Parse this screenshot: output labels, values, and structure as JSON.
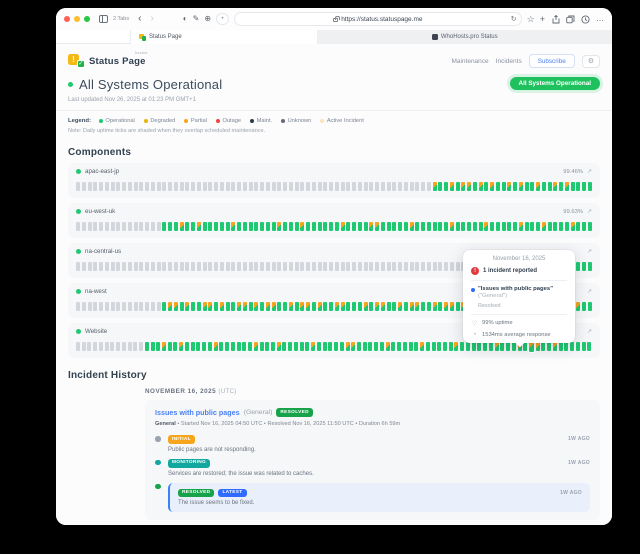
{
  "browser": {
    "tab_count_label": "2 Tabs",
    "url": "https://status.statuspage.me",
    "tabs": [
      {
        "label": "Status Page",
        "active": true
      },
      {
        "label": "WhoHosts.pro Status",
        "active": false
      }
    ]
  },
  "icons": {
    "back": "‹",
    "forward": "›",
    "reader": "◐",
    "markup": "✎",
    "extensions": "⊕",
    "tab_group_dot": "•",
    "reload": "↻",
    "star": "☆",
    "plus": "+",
    "more": "…",
    "open_metrics": "↗",
    "gear": "⚙",
    "alert": "!",
    "uptime": "♡",
    "response": "◔",
    "logo_exclaim": "!",
    "logo_check": "✓"
  },
  "header": {
    "logo_text": "Status Page",
    "logo_badge": "hosted",
    "nav": [
      "Maintenance",
      "Incidents"
    ],
    "subscribe_label": "Subscribe",
    "status_pill": "All Systems Operational"
  },
  "hero": {
    "title": "All Systems Operational",
    "last_updated": "Last updated Nov 26, 2025 at 01:23 PM GMT+1"
  },
  "legend": {
    "label": "Legend:",
    "items": [
      {
        "label": "Operational",
        "color": "#1ec971"
      },
      {
        "label": "Degraded",
        "color": "#eab308"
      },
      {
        "label": "Partial",
        "color": "#f6a51d"
      },
      {
        "label": "Outage",
        "color": "#ef4444"
      },
      {
        "label": "Maint.",
        "color": "#2f3b4a"
      },
      {
        "label": "Unknown",
        "color": "#646b76"
      },
      {
        "label": "Active Incident",
        "color": "#f7e7b9"
      }
    ],
    "note": "Note: Daily uptime ticks are shaded when they overlap scheduled maintenance."
  },
  "components": {
    "title": "Components",
    "rows": [
      {
        "name": "apac-east-jp",
        "uptime": "99.46%",
        "ticks": "xxxxxxxxxxxxxxxxxxxxxxxxxxxxxxxxxxxxxxxxxxxxxxxxxxxxxxxxxxxxxxmggmgmmgmgmggmgmggmggmgmgggg"
      },
      {
        "name": "eu-west-uk",
        "uptime": "99.63%",
        "ticks": "xxxxxxxxxxxxxxxgggmggmgggggmgggggggmgggmggggggmggggmmgggggmggggggmgggggmgggggmgggmggggmggg"
      },
      {
        "name": "na-central-us",
        "uptime": "",
        "ticks": "xxxxxxxxxxxxxxxxxxxxxxxxxxxxxxxxxxxxxxxxxxxxxxxxxxxxxxxxxxxxxxxxxxxxxxxxxxxxxxgggggggggggg"
      },
      {
        "name": "na-west",
        "uptime": "",
        "ticks": "xxxxxxxxxxxxxxxgmmgmggmmgmggmmgmgmmggmgmmgmggmmgggmgmmggmgmmggmgmmgmggmmgmggmggmmgggmgmmgg"
      },
      {
        "name": "Website",
        "uptime": "",
        "ticks": "xxxxxxxxxxxxgggmggmgggggmggggggmgggmgggggmgggggmmgggggmgggggmgggggmggggggmgggmghmggmgggggg"
      }
    ]
  },
  "tooltip": {
    "date": "November 16, 2025",
    "incident_count": "1 incident reported",
    "incident_title": "\"Issues with public pages\"",
    "incident_group": "(\"General\")",
    "incident_status": "Resolved",
    "uptime": "99% uptime",
    "response": "1534ms average response"
  },
  "incident_history": {
    "title": "Incident History",
    "date_heading": "NOVEMBER 16, 2025",
    "date_suffix": "(UTC)",
    "incident": {
      "title": "Issues with public pages",
      "group": "(General)",
      "badge": "RESOLVED",
      "badge_color": "#17a34a",
      "meta_bold": "General",
      "meta_rest": " • Started Nov 16, 2025 04:50 UTC • Resolved Nov 16, 2025 11:50 UTC • Duration 6h 59m",
      "updates": [
        {
          "badges": [
            {
              "label": "INITIAL",
              "color": "#f6a51d"
            }
          ],
          "dot_color": "#9aa3ae",
          "time": "1W AGO",
          "text": "Public pages are not responding.",
          "highlight": false
        },
        {
          "badges": [
            {
              "label": "MONITORING",
              "color": "#12a79f"
            }
          ],
          "dot_color": "#12a79f",
          "time": "1W AGO",
          "text": "Services are restored; the issue was related to caches.",
          "highlight": false
        },
        {
          "badges": [
            {
              "label": "RESOLVED",
              "color": "#17a34a"
            },
            {
              "label": "LATEST",
              "color": "#2f6bff"
            }
          ],
          "dot_color": "#17a34a",
          "time": "1W AGO",
          "text": "The issue seems to be fixed.",
          "highlight": true
        }
      ]
    }
  }
}
